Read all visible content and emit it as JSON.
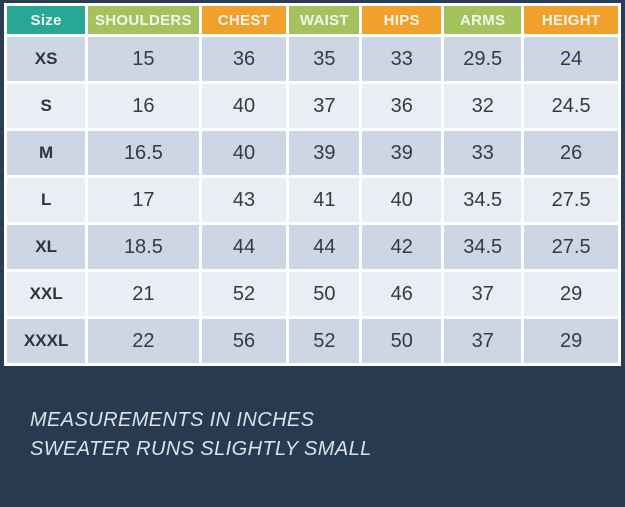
{
  "table": {
    "header": {
      "size_label": "Size",
      "columns": [
        "SHOULDERS",
        "CHEST",
        "WAIST",
        "HIPS",
        "ARMS",
        "HEIGHT"
      ]
    },
    "rows": [
      {
        "size": "XS",
        "values": [
          "15",
          "36",
          "35",
          "33",
          "29.5",
          "24"
        ]
      },
      {
        "size": "S",
        "values": [
          "16",
          "40",
          "37",
          "36",
          "32",
          "24.5"
        ]
      },
      {
        "size": "M",
        "values": [
          "16.5",
          "40",
          "39",
          "39",
          "33",
          "26"
        ]
      },
      {
        "size": "L",
        "values": [
          "17",
          "43",
          "41",
          "40",
          "34.5",
          "27.5"
        ]
      },
      {
        "size": "XL",
        "values": [
          "18.5",
          "44",
          "44",
          "42",
          "34.5",
          "27.5"
        ]
      },
      {
        "size": "XXL",
        "values": [
          "21",
          "52",
          "50",
          "46",
          "37",
          "29"
        ]
      },
      {
        "size": "XXXL",
        "values": [
          "22",
          "56",
          "52",
          "50",
          "37",
          "29"
        ]
      }
    ],
    "units": "inches"
  },
  "footer": {
    "line1": "MEASUREMENTS IN INCHES",
    "line2": "SWEATER RUNS SLIGHTLY SMALL"
  },
  "colors": {
    "header_teal": "#29a795",
    "header_green": "#a5c35c",
    "header_orange": "#f0a02b",
    "row_dark": "#ccd6e4",
    "row_light": "#e9edf4",
    "footer_navy": "#273a50",
    "cell_text": "#333b49",
    "header_text": "#f2f6ee"
  }
}
